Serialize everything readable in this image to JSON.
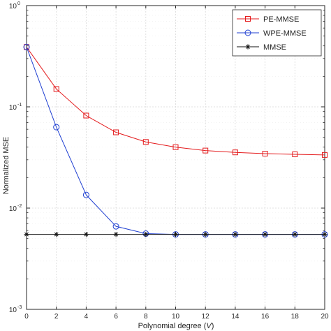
{
  "chart_data": {
    "type": "line",
    "xlabel_main": "Polynomial degree (",
    "xlabel_var": "V",
    "xlabel_close": ")",
    "ylabel": "Normalized MSE",
    "xlim": [
      0,
      20
    ],
    "ylim": [
      0.001,
      1
    ],
    "yscale": "log",
    "grid": true,
    "legend_placement": "top-right",
    "x_ticks": [
      0,
      2,
      4,
      6,
      8,
      10,
      12,
      14,
      16,
      18,
      20
    ],
    "x_tick_labels": [
      "0",
      "2",
      "4",
      "6",
      "8",
      "10",
      "12",
      "14",
      "16",
      "18",
      "20"
    ],
    "y_ticks": [
      {
        "value": 1,
        "base": "10",
        "exp": "0"
      },
      {
        "value": 0.1,
        "base": "10",
        "exp": "-1"
      },
      {
        "value": 0.01,
        "base": "10",
        "exp": "-2"
      },
      {
        "value": 0.001,
        "base": "10",
        "exp": "-3"
      }
    ],
    "x": [
      0,
      2,
      4,
      6,
      8,
      10,
      12,
      14,
      16,
      18,
      20
    ],
    "series": [
      {
        "name": "PE-MMSE",
        "color": "#e41a1c",
        "marker": "square",
        "values": [
          0.39,
          0.15,
          0.082,
          0.056,
          0.045,
          0.04,
          0.037,
          0.0355,
          0.0345,
          0.034,
          0.0335
        ]
      },
      {
        "name": "WPE-MMSE",
        "color": "#1f3fd1",
        "marker": "circle",
        "values": [
          0.39,
          0.063,
          0.0135,
          0.0066,
          0.0056,
          0.0055,
          0.0055,
          0.0055,
          0.0055,
          0.0055,
          0.0055
        ]
      },
      {
        "name": "MMSE",
        "color": "#111111",
        "marker": "asterisk",
        "values": [
          0.0055,
          0.0055,
          0.0055,
          0.0055,
          0.0055,
          0.0055,
          0.0055,
          0.0055,
          0.0055,
          0.0055,
          0.0055
        ]
      }
    ]
  }
}
